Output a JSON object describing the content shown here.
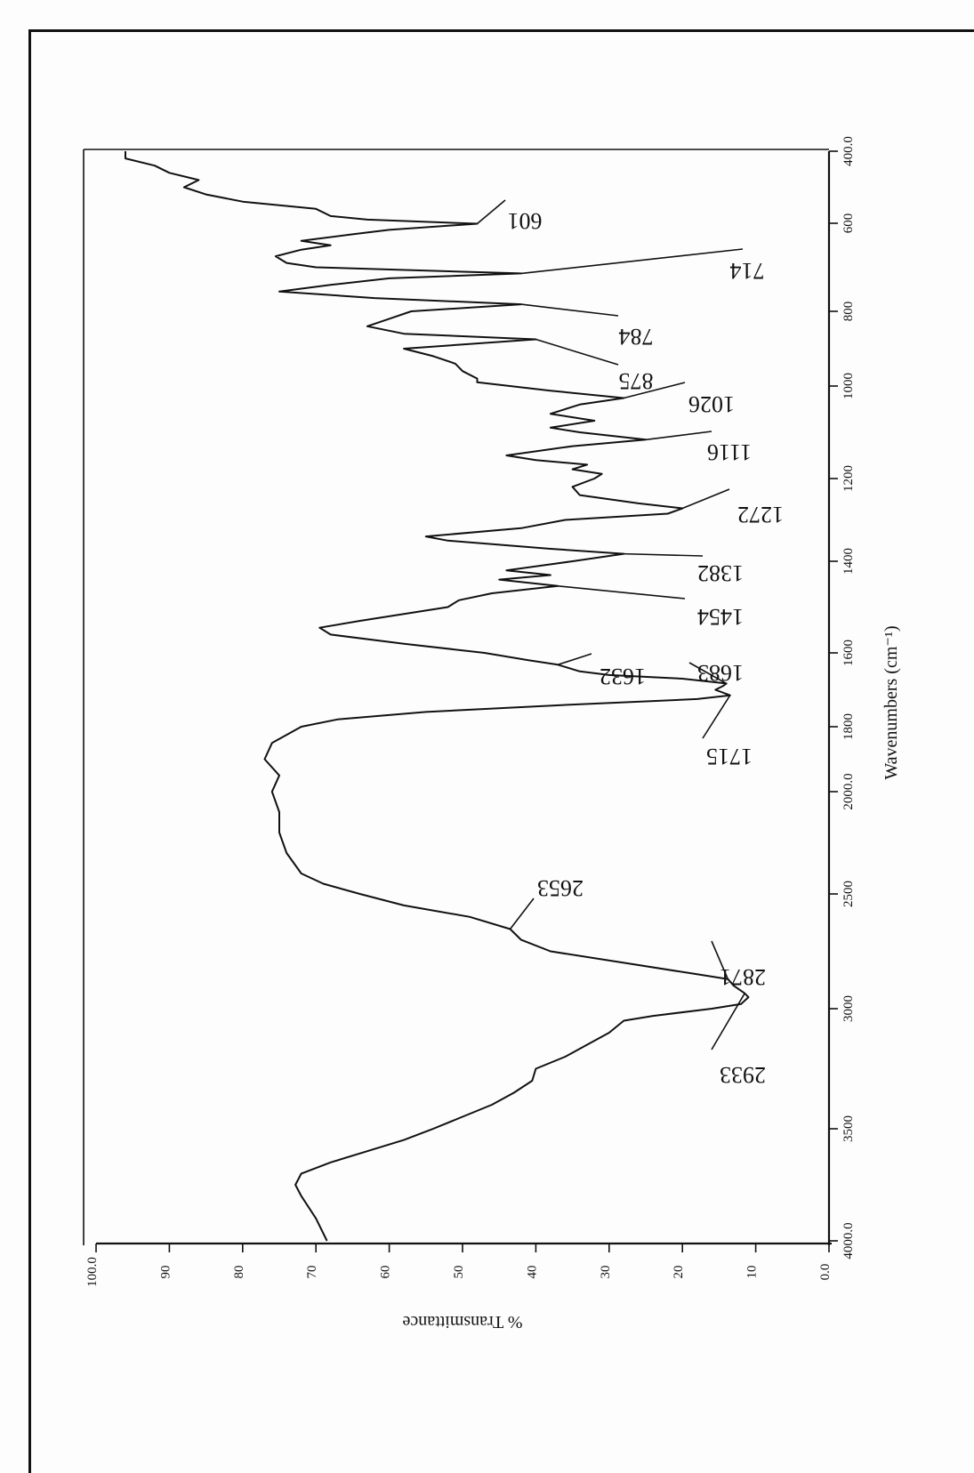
{
  "chart_data": {
    "type": "line",
    "orientation": "rotated-90",
    "xlabel": "Wavenumbers (cm⁻¹)",
    "ylabel": "% Transmittance",
    "xlim": [
      4000,
      400
    ],
    "ylim": [
      0,
      100
    ],
    "x_ticks": [
      {
        "value": 4000,
        "label": "4000.0"
      },
      {
        "value": 3500,
        "label": "3500"
      },
      {
        "value": 3000,
        "label": "3000"
      },
      {
        "value": 2500,
        "label": "2500"
      },
      {
        "value": 2000,
        "label": "2000.0"
      },
      {
        "value": 1800,
        "label": "1800"
      },
      {
        "value": 1600,
        "label": "1600"
      },
      {
        "value": 1400,
        "label": "1400"
      },
      {
        "value": 1200,
        "label": "1200"
      },
      {
        "value": 1000,
        "label": "1000"
      },
      {
        "value": 800,
        "label": "800"
      },
      {
        "value": 600,
        "label": "600"
      },
      {
        "value": 400,
        "label": "400.0"
      }
    ],
    "y_ticks": [
      {
        "value": 0,
        "label": "0.0"
      },
      {
        "value": 10,
        "label": "10"
      },
      {
        "value": 20,
        "label": "20"
      },
      {
        "value": 30,
        "label": "30"
      },
      {
        "value": 40,
        "label": "40"
      },
      {
        "value": 50,
        "label": "50"
      },
      {
        "value": 60,
        "label": "60"
      },
      {
        "value": 70,
        "label": "70"
      },
      {
        "value": 80,
        "label": "80"
      },
      {
        "value": 90,
        "label": "90"
      },
      {
        "value": 100,
        "label": "100.0"
      }
    ],
    "series": [
      {
        "points": [
          [
            4000,
            68.5
          ],
          [
            3900,
            70
          ],
          [
            3800,
            72
          ],
          [
            3750,
            72.8
          ],
          [
            3700,
            72
          ],
          [
            3650,
            68
          ],
          [
            3600,
            63
          ],
          [
            3550,
            58
          ],
          [
            3500,
            54
          ],
          [
            3450,
            50
          ],
          [
            3400,
            46
          ],
          [
            3350,
            43
          ],
          [
            3300,
            40.5
          ],
          [
            3250,
            40
          ],
          [
            3200,
            36
          ],
          [
            3150,
            33
          ],
          [
            3100,
            30
          ],
          [
            3050,
            28
          ],
          [
            3030,
            24
          ],
          [
            3000,
            16
          ],
          [
            2980,
            12
          ],
          [
            2950,
            11
          ],
          [
            2933,
            11.5
          ],
          [
            2900,
            13
          ],
          [
            2871,
            13.8
          ],
          [
            2850,
            18
          ],
          [
            2800,
            28
          ],
          [
            2750,
            38
          ],
          [
            2700,
            42
          ],
          [
            2653,
            43.5
          ],
          [
            2600,
            49
          ],
          [
            2550,
            58
          ],
          [
            2500,
            64
          ],
          [
            2450,
            69
          ],
          [
            2400,
            72
          ],
          [
            2300,
            74
          ],
          [
            2200,
            75
          ],
          [
            2100,
            75
          ],
          [
            2000,
            76
          ],
          [
            1950,
            75
          ],
          [
            1900,
            77
          ],
          [
            1850,
            76
          ],
          [
            1800,
            72
          ],
          [
            1780,
            67
          ],
          [
            1760,
            55
          ],
          [
            1740,
            35
          ],
          [
            1725,
            18
          ],
          [
            1715,
            13.5
          ],
          [
            1700,
            15.5
          ],
          [
            1690,
            14.5
          ],
          [
            1683,
            14
          ],
          [
            1670,
            20
          ],
          [
            1660,
            30
          ],
          [
            1650,
            34
          ],
          [
            1632,
            37
          ],
          [
            1620,
            41
          ],
          [
            1600,
            47
          ],
          [
            1580,
            58
          ],
          [
            1560,
            68
          ],
          [
            1545,
            69.5
          ],
          [
            1530,
            64
          ],
          [
            1515,
            58
          ],
          [
            1500,
            52
          ],
          [
            1485,
            50.5
          ],
          [
            1470,
            46
          ],
          [
            1454,
            37
          ],
          [
            1440,
            45
          ],
          [
            1430,
            38
          ],
          [
            1420,
            44
          ],
          [
            1400,
            35
          ],
          [
            1382,
            28
          ],
          [
            1370,
            38
          ],
          [
            1350,
            52
          ],
          [
            1340,
            55
          ],
          [
            1320,
            42
          ],
          [
            1300,
            36
          ],
          [
            1285,
            22
          ],
          [
            1272,
            20
          ],
          [
            1260,
            26
          ],
          [
            1240,
            34
          ],
          [
            1220,
            35
          ],
          [
            1200,
            32
          ],
          [
            1190,
            31
          ],
          [
            1180,
            35
          ],
          [
            1170,
            33
          ],
          [
            1160,
            40
          ],
          [
            1150,
            44
          ],
          [
            1130,
            35
          ],
          [
            1116,
            25
          ],
          [
            1100,
            34
          ],
          [
            1090,
            38
          ],
          [
            1075,
            32
          ],
          [
            1060,
            38
          ],
          [
            1040,
            34
          ],
          [
            1026,
            28
          ],
          [
            1010,
            38
          ],
          [
            990,
            48
          ],
          [
            980,
            48
          ],
          [
            960,
            50
          ],
          [
            940,
            51
          ],
          [
            920,
            54
          ],
          [
            900,
            58
          ],
          [
            875,
            40
          ],
          [
            860,
            58
          ],
          [
            840,
            63
          ],
          [
            820,
            60
          ],
          [
            800,
            57
          ],
          [
            784,
            42
          ],
          [
            770,
            62
          ],
          [
            755,
            75
          ],
          [
            740,
            68
          ],
          [
            725,
            60
          ],
          [
            714,
            42
          ],
          [
            700,
            70
          ],
          [
            690,
            74
          ],
          [
            675,
            75.5
          ],
          [
            660,
            72
          ],
          [
            650,
            68
          ],
          [
            640,
            72
          ],
          [
            625,
            65
          ],
          [
            615,
            60
          ],
          [
            601,
            48
          ],
          [
            590,
            63
          ],
          [
            580,
            68
          ],
          [
            560,
            70
          ],
          [
            540,
            80
          ],
          [
            520,
            85
          ],
          [
            500,
            88
          ],
          [
            480,
            86
          ],
          [
            460,
            90
          ],
          [
            440,
            92
          ],
          [
            420,
            96
          ],
          [
            400,
            96
          ]
        ]
      }
    ],
    "annotations": [
      {
        "wavenumber": 601,
        "label": "601"
      },
      {
        "wavenumber": 714,
        "label": "714"
      },
      {
        "wavenumber": 784,
        "label": "784"
      },
      {
        "wavenumber": 875,
        "label": "875"
      },
      {
        "wavenumber": 1026,
        "label": "1026"
      },
      {
        "wavenumber": 1116,
        "label": "1116"
      },
      {
        "wavenumber": 1272,
        "label": "1272"
      },
      {
        "wavenumber": 1382,
        "label": "1382"
      },
      {
        "wavenumber": 1454,
        "label": "1454"
      },
      {
        "wavenumber": 1632,
        "label": "1632"
      },
      {
        "wavenumber": 1683,
        "label": "1683"
      },
      {
        "wavenumber": 1715,
        "label": "1715"
      },
      {
        "wavenumber": 2653,
        "label": "2653"
      },
      {
        "wavenumber": 2871,
        "label": "2871"
      },
      {
        "wavenumber": 2933,
        "label": "2933"
      }
    ]
  }
}
